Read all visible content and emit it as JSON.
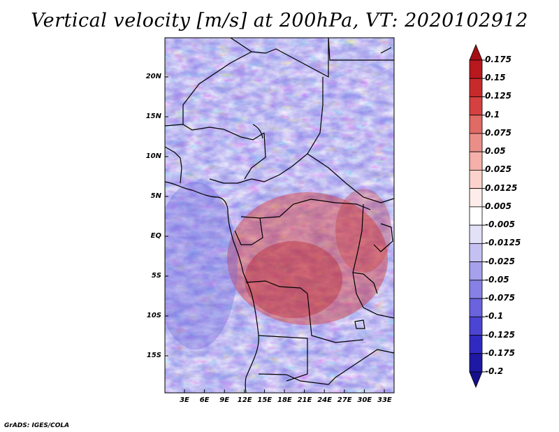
{
  "title": "Vertical velocity [m/s] at 200hPa, VT: 2020102912",
  "credit": "GrADS: IGES/COLA",
  "map": {
    "lat_labels": [
      "20N",
      "15N",
      "10N",
      "5N",
      "EQ",
      "5S",
      "10S",
      "15S"
    ],
    "lon_labels": [
      "3E",
      "6E",
      "9E",
      "12E",
      "15E",
      "18E",
      "21E",
      "24E",
      "27E",
      "30E",
      "33E"
    ]
  },
  "colorbar": {
    "labels": [
      "0.175",
      "0.15",
      "0.125",
      "0.1",
      "0.075",
      "0.05",
      "0.025",
      "0.0125",
      "0.005",
      "-0.005",
      "-0.0125",
      "-0.025",
      "-0.05",
      "-0.075",
      "-0.1",
      "-0.125",
      "-0.175",
      "-0.2"
    ],
    "colors": [
      "#a50f15",
      "#b8181e",
      "#c72a2b",
      "#d44140",
      "#e06a64",
      "#ea8f88",
      "#f4b0a9",
      "#fbd2cc",
      "#fdecea",
      "#ffffff",
      "#e3e1f8",
      "#c4c1f2",
      "#a5a1ec",
      "#8781e6",
      "#6a63dd",
      "#4c44d2",
      "#3129c0",
      "#1f18a4",
      "#15108a"
    ]
  }
}
